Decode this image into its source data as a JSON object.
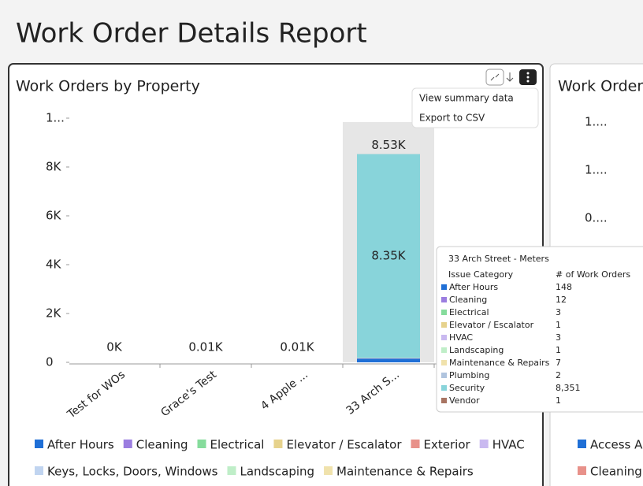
{
  "page_title": "Work Order Details Report",
  "menu": [
    "View summary data",
    "Export to CSV"
  ],
  "chart_data": {
    "type": "bar",
    "stacked": true,
    "title": "Work Orders by Property",
    "categories": [
      "Test for WOs",
      "Grace's Test",
      "4 Apple ...",
      "33 Arch S..."
    ],
    "ylim": [
      0,
      10000
    ],
    "yticks": [
      0,
      {
        "value": 2000,
        "label": "2K"
      },
      {
        "value": 4000,
        "label": "4K"
      },
      {
        "value": 6000,
        "label": "6K"
      },
      {
        "value": 8000,
        "label": "8K"
      },
      {
        "value": 10000,
        "label": "1..."
      }
    ],
    "totals": [
      0,
      10,
      10,
      8529
    ],
    "total_labels": [
      "0K",
      "0.01K",
      "0.01K",
      "8.53K"
    ],
    "highlight": 3,
    "series": [
      {
        "name": "After Hours",
        "color": "#1f6fd6",
        "values": [
          null,
          null,
          null,
          148
        ]
      },
      {
        "name": "Cleaning",
        "color": "#9b7de0",
        "values": [
          null,
          null,
          null,
          12
        ]
      },
      {
        "name": "Electrical",
        "color": "#86dc9c",
        "values": [
          null,
          null,
          null,
          3
        ]
      },
      {
        "name": "Elevator / Escalator",
        "color": "#e6d28c",
        "values": [
          null,
          null,
          null,
          1
        ]
      },
      {
        "name": "Exterior",
        "color": "#e8918a",
        "values": [
          null,
          null,
          null,
          null
        ]
      },
      {
        "name": "HVAC",
        "color": "#c9b9f0",
        "values": [
          null,
          null,
          null,
          3
        ]
      },
      {
        "name": "Keys, Locks, Doors, Windows",
        "color": "#c0d4f0",
        "values": [
          null,
          null,
          null,
          null
        ]
      },
      {
        "name": "Landscaping",
        "color": "#bfeec8",
        "values": [
          null,
          null,
          null,
          1
        ]
      },
      {
        "name": "Maintenance & Repairs",
        "color": "#f0e2ac",
        "values": [
          null,
          null,
          null,
          7
        ]
      },
      {
        "name": "Plumbing",
        "color": "#b0c4de",
        "values": [
          null,
          null,
          null,
          2
        ]
      },
      {
        "name": "Security",
        "color": "#88d4da",
        "values": [
          null,
          null,
          null,
          8351
        ],
        "value_labels": [
          null,
          null,
          null,
          "8,351"
        ],
        "segment_labels": [
          null,
          null,
          null,
          "8.35K"
        ]
      },
      {
        "name": "Vendor",
        "color": "#a87462",
        "values": [
          null,
          null,
          null,
          1
        ]
      }
    ],
    "tooltip": {
      "title": "33 Arch Street - Meters",
      "category_header": "Issue Category",
      "count_header": "# of Work Orders"
    }
  },
  "panel2": {
    "title": "Work Orders",
    "ytick_labels": [
      "1....",
      "1....",
      "0...."
    ],
    "legend": [
      "Access As",
      "Cleaning"
    ]
  }
}
